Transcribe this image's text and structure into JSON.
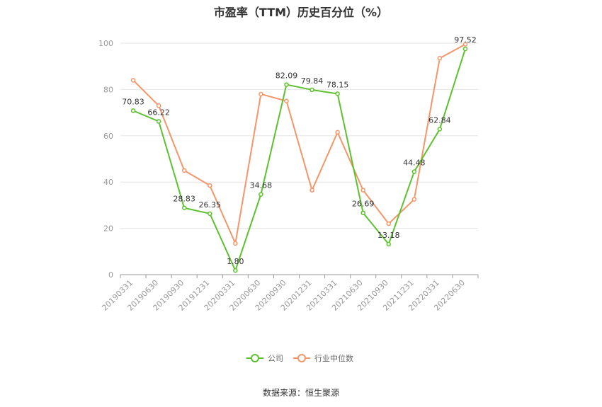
{
  "chart_data": {
    "type": "line",
    "title": "市盈率（TTM）历史百分位（%）",
    "source": "数据来源：恒生聚源",
    "categories": [
      "20190331",
      "20190630",
      "20190930",
      "20191231",
      "20200331",
      "20200630",
      "20200930",
      "20201231",
      "20210331",
      "20210630",
      "20210930",
      "20211231",
      "20220331",
      "20220630"
    ],
    "ylim": [
      0,
      100
    ],
    "yticks": [
      0,
      20,
      40,
      60,
      80,
      100
    ],
    "grid": true,
    "legend_position": "bottom",
    "series": [
      {
        "name": "公司",
        "color": "#5ec12f",
        "values": [
          70.83,
          66.22,
          28.83,
          26.35,
          1.8,
          34.68,
          82.09,
          79.84,
          78.15,
          26.69,
          13.18,
          44.48,
          62.84,
          97.52
        ],
        "labels": [
          "70.83",
          "66.22",
          "28.83",
          "26.35",
          "1.80",
          "34.68",
          "82.09",
          "79.84",
          "78.15",
          "26.69",
          "13.18",
          "44.48",
          "62.84",
          "97.52"
        ]
      },
      {
        "name": "行业中位数",
        "color": "#f5956a",
        "values": [
          84,
          73,
          45,
          38.5,
          13.5,
          78,
          75,
          36.5,
          61.5,
          36.5,
          22,
          32.5,
          93.5,
          99.5
        ]
      }
    ]
  }
}
